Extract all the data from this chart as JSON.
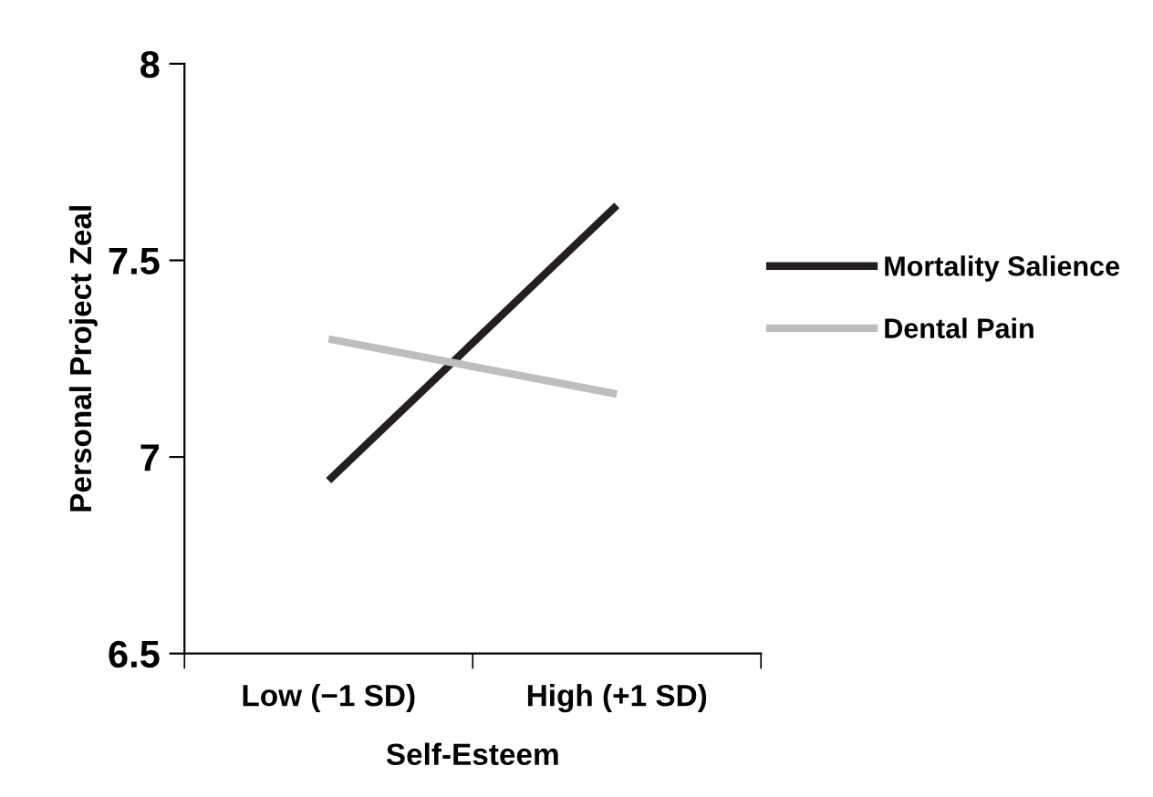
{
  "chart_data": {
    "type": "line",
    "xlabel": "Self-Esteem",
    "ylabel": "Personal Project Zeal",
    "categories": [
      "Low (−1 SD)",
      "High (+1 SD)"
    ],
    "series": [
      {
        "name": "Mortality Salience",
        "color": "#231f20",
        "values": [
          6.94,
          7.64
        ]
      },
      {
        "name": "Dental Pain",
        "color": "#bcbec0",
        "values": [
          7.3,
          7.16
        ]
      }
    ],
    "ylim": [
      6.5,
      8
    ],
    "yticks": [
      6.5,
      7,
      7.5,
      8
    ],
    "grid": false,
    "legend": "right",
    "marker": "none",
    "line_style": "solid"
  }
}
